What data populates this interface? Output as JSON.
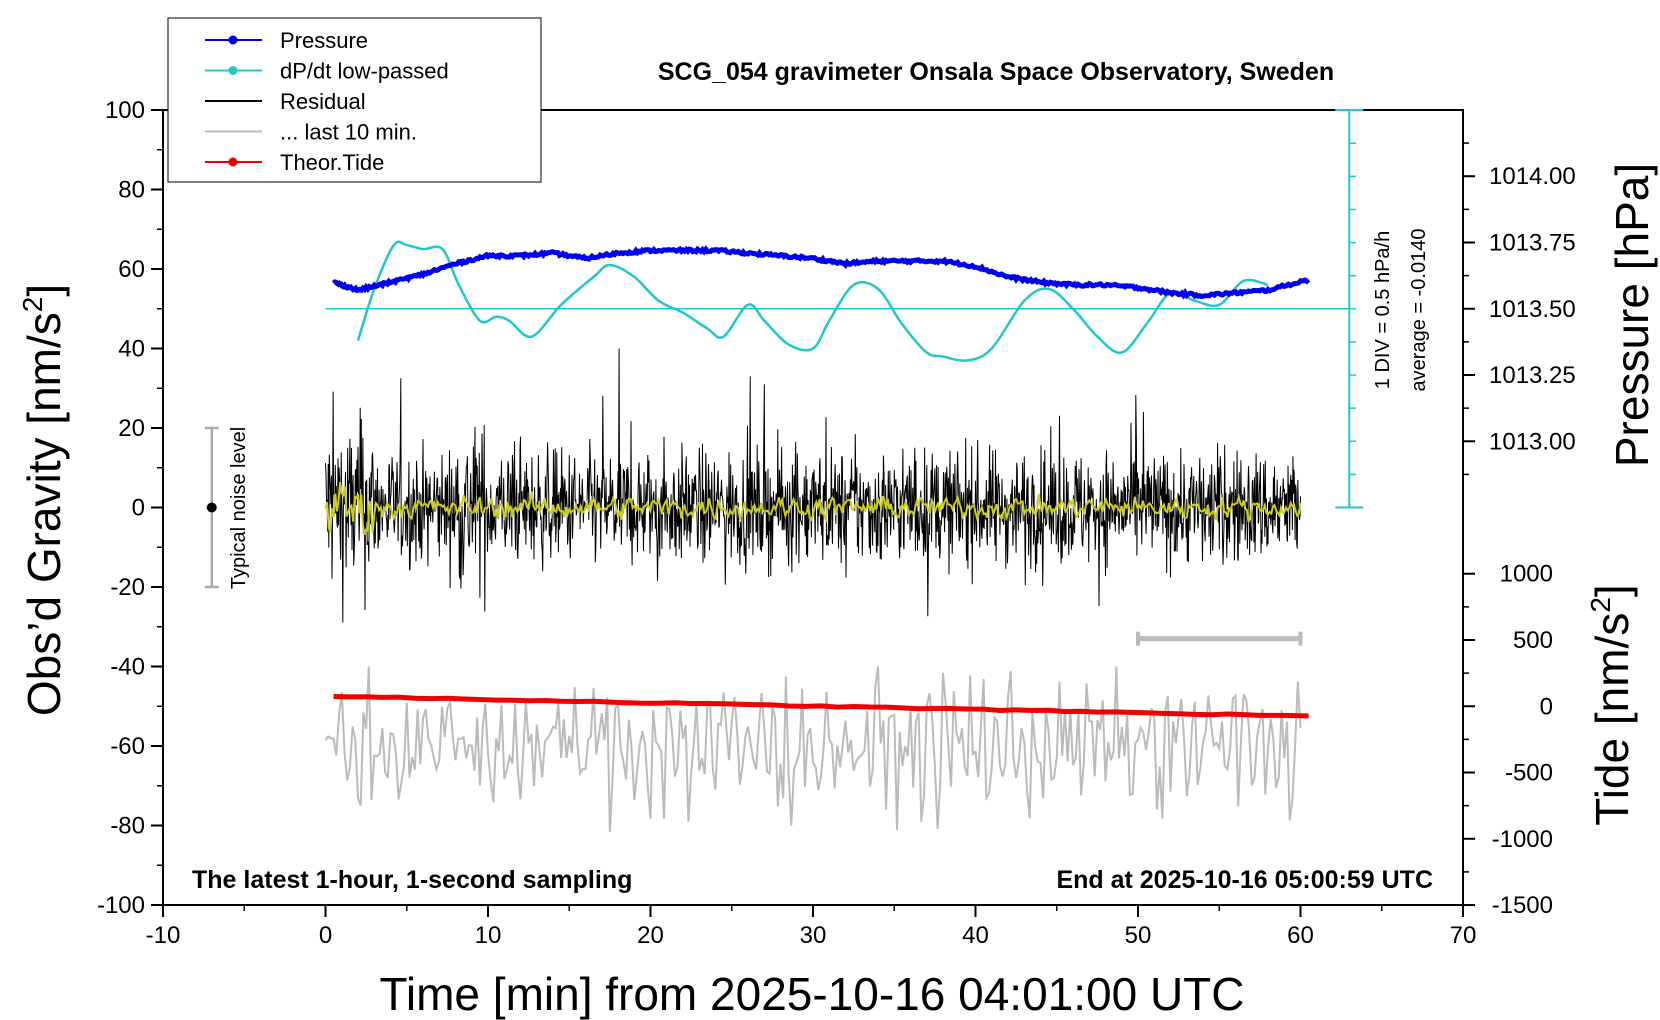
{
  "chart_data": {
    "type": "line",
    "title": "SCG_054 gravimeter Onsala Space Observatory, Sweden",
    "subtitle_left": "The latest 1-hour, 1-second sampling",
    "subtitle_right": "End at 2025-10-16 05:00:59 UTC",
    "xlabel": "Time [min] from 2025-10-16 04:01:00 UTC",
    "ylabel_left_main": "Obs’d Gravity [nm/s",
    "ylabel_left_sup": "2",
    "ylabel_left_end": "]",
    "ylabel_right_pressure": "Pressure [hPa]",
    "ylabel_right_tide_main": "Tide [nm/s",
    "ylabel_right_tide_sup": "2",
    "ylabel_right_tide_end": "]",
    "xlim": [
      -10,
      70
    ],
    "ylim": [
      -100,
      100
    ],
    "x_ticks": [
      "-10",
      "0",
      "10",
      "20",
      "30",
      "40",
      "50",
      "60",
      "70"
    ],
    "y_ticks": [
      "100",
      "80",
      "60",
      "40",
      "20",
      "0",
      "-20",
      "-40",
      "-60",
      "-80",
      "-100"
    ],
    "pressure_ticks": [
      "1014.00",
      "1013.75",
      "1013.50",
      "1013.25",
      "1013.00"
    ],
    "tide_ticks": [
      "1000",
      "500",
      "0",
      "-500",
      "-1000",
      "-1500"
    ],
    "legend": {
      "placement": "top-left",
      "items": [
        {
          "label": "Pressure",
          "color": "#0000ee",
          "marker": true
        },
        {
          "label": "dP/dt low-passed",
          "color": "#22c8c8",
          "marker": true
        },
        {
          "label": "Residual",
          "color": "#000000",
          "marker": false
        },
        {
          "label": "... last 10 min.",
          "color": "#bbbbbb",
          "marker": false
        },
        {
          "label": "Theor.Tide",
          "color": "#ee0000",
          "marker": true
        }
      ]
    },
    "annotations": {
      "noise_label": "Typical noise level",
      "div_label": "1 DIV = 0.5 hPa/h",
      "average_label": "average = -0.0140"
    },
    "series": [
      {
        "name": "Pressure",
        "unit": "hPa",
        "color": "#0000ee",
        "x": [
          0.5,
          2,
          4,
          6,
          8,
          10,
          12,
          14,
          16,
          18,
          20,
          22,
          24,
          26,
          28,
          30,
          32,
          34,
          36,
          38,
          40,
          42,
          44,
          46,
          48,
          50,
          52,
          54,
          56,
          58,
          60.5
        ],
        "y": [
          1013.6,
          1013.57,
          1013.6,
          1013.63,
          1013.67,
          1013.7,
          1013.7,
          1013.71,
          1013.69,
          1013.71,
          1013.72,
          1013.72,
          1013.72,
          1013.71,
          1013.7,
          1013.69,
          1013.67,
          1013.68,
          1013.68,
          1013.68,
          1013.66,
          1013.62,
          1013.6,
          1013.59,
          1013.59,
          1013.58,
          1013.56,
          1013.55,
          1013.56,
          1013.57,
          1013.61
        ]
      },
      {
        "name": "dP/dt low-passed",
        "unit": "DIV",
        "color": "#22c8c8",
        "baseline": 50,
        "x": [
          2,
          3,
          4.2,
          5,
          6,
          7.2,
          8.2,
          9.5,
          10.5,
          11.3,
          12.7,
          14.5,
          16.5,
          17.5,
          19,
          20.5,
          22,
          23.5,
          24.5,
          26,
          27,
          28.5,
          30,
          31,
          32.5,
          34,
          35.5,
          37,
          38,
          39.5,
          41,
          43,
          44.5,
          46,
          47.5,
          49,
          50.5,
          52,
          53.5,
          55,
          56.5,
          58
        ],
        "y": [
          42,
          55,
          66,
          66,
          65,
          65,
          56,
          47,
          48,
          47,
          43,
          51,
          58,
          61,
          58,
          52,
          49,
          45,
          43,
          51,
          47,
          41,
          40,
          47,
          56,
          55,
          46,
          39,
          38,
          37,
          40,
          52,
          55,
          50,
          43,
          39,
          46,
          54,
          52,
          51,
          57,
          56
        ]
      },
      {
        "name": "Residual",
        "unit": "nm/s2",
        "color": "#000000",
        "x_range": [
          0,
          60
        ],
        "amplitude": 20
      },
      {
        "name": "... last 10 min.",
        "unit": "nm/s2",
        "color": "#bbbbbb",
        "offset": -60,
        "x_range": [
          0,
          60
        ],
        "amplitude": 12
      },
      {
        "name": "Theor.Tide",
        "unit": "nm/s2",
        "color": "#ee0000",
        "x": [
          0.5,
          60.5
        ],
        "y": [
          -47.5,
          -52.5
        ]
      }
    ],
    "yellow_line": {
      "color": "#cccc22",
      "x_range": [
        0,
        60
      ]
    },
    "noise_bar": {
      "x": -7,
      "y_low": -20,
      "y_high": 20,
      "center": 0
    },
    "ten_min_bar": {
      "x_start": 50,
      "x_end": 60,
      "y": -33
    }
  }
}
